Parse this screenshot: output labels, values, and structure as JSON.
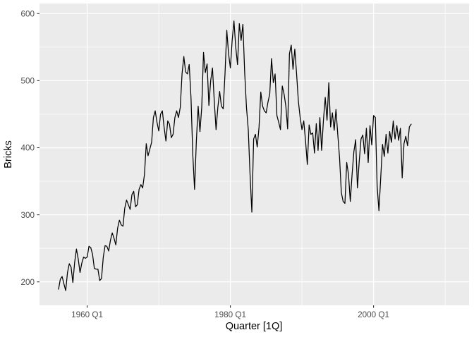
{
  "figure": {
    "background": "#FFFFFF",
    "panel_background": "#EBEBEB",
    "grid_color": "#FFFFFF",
    "line_color": "#000000",
    "tick_mark_color": "#333333",
    "axis_text_color": "#4D4D4D",
    "axis_title_color": "#000000"
  },
  "chart_data": {
    "type": "line",
    "title": "",
    "xlabel": "Quarter [1Q]",
    "ylabel": "Bricks",
    "grid": "on",
    "legend": "none",
    "x_start": "1956 Q1",
    "x_end": "2005 Q2",
    "frequency": "quarterly",
    "x_axis_extends_to": "2010 Q2",
    "ylim": [
      165,
      615
    ],
    "y_ticks": [
      200,
      300,
      400,
      500,
      600
    ],
    "y_minor_ticks": [
      250,
      350,
      450,
      550
    ],
    "x_ticks": [
      {
        "label": "1960 Q1",
        "quarter_index": 16
      },
      {
        "label": "1980 Q1",
        "quarter_index": 96
      },
      {
        "label": "2000 Q1",
        "quarter_index": 176
      }
    ],
    "x_minor_quarter_indices": [
      56,
      136,
      216
    ],
    "series": [
      {
        "name": "Bricks",
        "start_year": 1956,
        "start_quarter": 1,
        "values": [
          189,
          204,
          208,
          197,
          187,
          214,
          227,
          222,
          199,
          229,
          249,
          234,
          214,
          228,
          237,
          235,
          237,
          253,
          251,
          241,
          220,
          219,
          219,
          202,
          205,
          237,
          254,
          253,
          246,
          262,
          273,
          265,
          255,
          280,
          292,
          285,
          283,
          310,
          322,
          315,
          308,
          330,
          335,
          312,
          315,
          338,
          345,
          340,
          360,
          406,
          388,
          398,
          408,
          445,
          455,
          438,
          425,
          450,
          455,
          430,
          410,
          440,
          435,
          415,
          420,
          445,
          455,
          445,
          460,
          510,
          536,
          513,
          510,
          524,
          475,
          390,
          338,
          410,
          462,
          424,
          460,
          542,
          512,
          525,
          463,
          500,
          519,
          470,
          427,
          460,
          484,
          462,
          458,
          510,
          575,
          540,
          519,
          560,
          589,
          550,
          524,
          585,
          560,
          584,
          512,
          460,
          427,
          360,
          304,
          413,
          420,
          401,
          430,
          483,
          462,
          455,
          452,
          468,
          480,
          533,
          497,
          510,
          448,
          438,
          427,
          492,
          480,
          462,
          428,
          540,
          553,
          517,
          547,
          510,
          469,
          445,
          427,
          440,
          410,
          375,
          434,
          420,
          422,
          392,
          436,
          396,
          445,
          396,
          441,
          475,
          441,
          497,
          431,
          452,
          426,
          457,
          420,
          385,
          333,
          320,
          317,
          378,
          360,
          320,
          360,
          394,
          412,
          340,
          380,
          413,
          419,
          391,
          429,
          378,
          433,
          404,
          448,
          445,
          343,
          306,
          355,
          405,
          387,
          420,
          392,
          424,
          408,
          440,
          413,
          433,
          411,
          429,
          355,
          406,
          417,
          403,
          431,
          435
        ]
      }
    ]
  }
}
